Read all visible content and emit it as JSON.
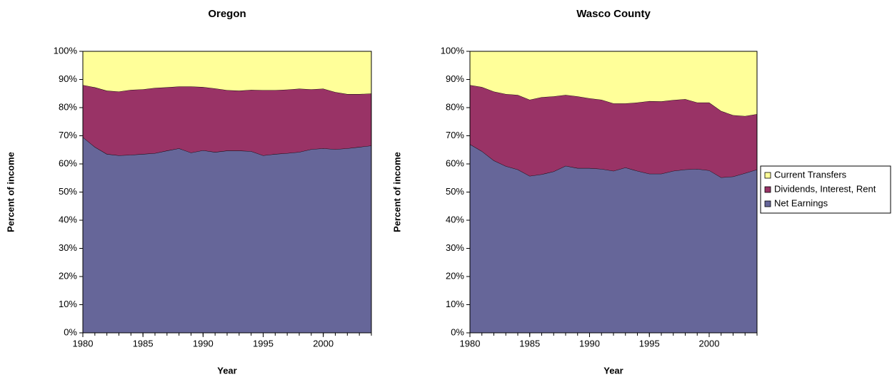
{
  "chart_data": [
    {
      "type": "stacked-area",
      "title": "Oregon",
      "x_label": "Year",
      "y_label": "Percent of income",
      "x": [
        1980,
        1981,
        1982,
        1983,
        1984,
        1985,
        1986,
        1987,
        1988,
        1989,
        1990,
        1991,
        1992,
        1993,
        1994,
        1995,
        1996,
        1997,
        1998,
        1999,
        2000,
        2001,
        2002,
        2003,
        2004
      ],
      "series": [
        {
          "color": "#666699",
          "values": [
            69.5,
            66,
            63.5,
            63,
            63.2,
            63.5,
            63.8,
            64.7,
            65.5,
            64,
            64.8,
            64.2,
            64.7,
            64.7,
            64.5,
            63,
            63.5,
            63.8,
            64.2,
            65.2,
            65.5,
            65.2,
            65.5,
            66,
            66.5
          ]
        },
        {
          "color": "#993366",
          "values": [
            18.5,
            21.2,
            22.5,
            22.7,
            23.1,
            23,
            23.2,
            22.5,
            22,
            23.5,
            22.5,
            22.6,
            21.5,
            21.3,
            21.8,
            23.2,
            22.7,
            22.6,
            22.5,
            21.3,
            21.2,
            20.3,
            19.3,
            18.8,
            18.5
          ]
        },
        {
          "color": "#ffff99",
          "values": [
            12,
            12.8,
            14,
            14.3,
            13.7,
            13.5,
            13,
            12.8,
            12.5,
            12.5,
            12.7,
            13.2,
            13.8,
            14,
            13.7,
            13.8,
            13.8,
            13.6,
            13.3,
            13.5,
            13.3,
            14.5,
            15.2,
            15.2,
            15
          ]
        }
      ],
      "xlim": [
        1980,
        2004
      ],
      "xticks": [
        1980,
        1985,
        1990,
        1995,
        2000
      ],
      "ylim": [
        0,
        100
      ],
      "yticks": [
        {
          "value": 0,
          "label": "0%"
        },
        {
          "value": 10,
          "label": "10%"
        },
        {
          "value": 20,
          "label": "20%"
        },
        {
          "value": 30,
          "label": "30%"
        },
        {
          "value": 40,
          "label": "40%"
        },
        {
          "value": 50,
          "label": "50%"
        },
        {
          "value": 60,
          "label": "60%"
        },
        {
          "value": 70,
          "label": "70%"
        },
        {
          "value": 80,
          "label": "80%"
        },
        {
          "value": 90,
          "label": "90%"
        },
        {
          "value": 100,
          "label": "100%"
        }
      ]
    },
    {
      "type": "stacked-area",
      "title": "Wasco County",
      "x_label": "Year",
      "y_label": "Percent of income",
      "x": [
        1980,
        1981,
        1982,
        1983,
        1984,
        1985,
        1986,
        1987,
        1988,
        1989,
        1990,
        1991,
        1992,
        1993,
        1994,
        1995,
        1996,
        1997,
        1998,
        1999,
        2000,
        2001,
        2002,
        2003,
        2004
      ],
      "series": [
        {
          "name": "Net Earnings",
          "color": "#666699",
          "values": [
            67,
            64.5,
            61.2,
            59.2,
            58,
            55.7,
            56.3,
            57.3,
            59.3,
            58.5,
            58.5,
            58.2,
            57.5,
            58.7,
            57.5,
            56.5,
            56.5,
            57.5,
            58,
            58.2,
            57.7,
            55.2,
            55.5,
            56.7,
            58
          ]
        },
        {
          "name": "Dividends, Interest, Rent",
          "color": "#993366",
          "values": [
            21,
            22.8,
            24.5,
            25.6,
            26.5,
            27.1,
            27.4,
            26.7,
            25.2,
            25.5,
            24.8,
            24.6,
            24,
            22.8,
            24.3,
            25.8,
            25.7,
            25.2,
            25,
            23.6,
            24.1,
            23.6,
            21.8,
            20.3,
            19.7
          ]
        },
        {
          "name": "Current Transfers",
          "color": "#ffff99",
          "values": [
            12,
            12.7,
            14.3,
            15.2,
            15.5,
            17.2,
            16.3,
            16,
            15.5,
            16,
            16.7,
            17.2,
            18.5,
            18.5,
            18.2,
            17.7,
            17.8,
            17.3,
            17,
            18.2,
            18.2,
            21.2,
            22.7,
            23,
            22.3
          ]
        }
      ],
      "xlim": [
        1980,
        2004
      ],
      "xticks": [
        1980,
        1985,
        1990,
        1995,
        2000
      ],
      "ylim": [
        0,
        100
      ],
      "yticks": [
        {
          "value": 0,
          "label": "0%"
        },
        {
          "value": 10,
          "label": "10%"
        },
        {
          "value": 20,
          "label": "20%"
        },
        {
          "value": 30,
          "label": "30%"
        },
        {
          "value": 40,
          "label": "40%"
        },
        {
          "value": 50,
          "label": "50%"
        },
        {
          "value": 60,
          "label": "60%"
        },
        {
          "value": 70,
          "label": "70%"
        },
        {
          "value": 80,
          "label": "80%"
        },
        {
          "value": 90,
          "label": "90%"
        },
        {
          "value": 100,
          "label": "100%"
        }
      ],
      "legend": "right"
    }
  ]
}
